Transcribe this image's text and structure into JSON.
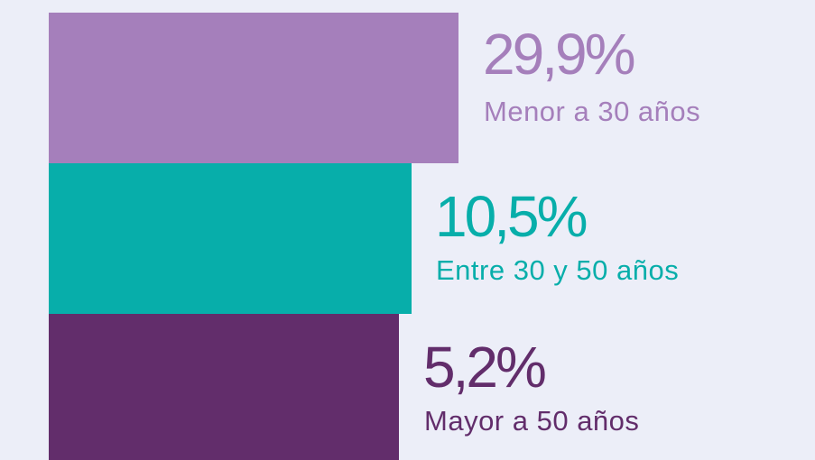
{
  "items": [
    {
      "value": "29,9%",
      "label": "Menor a 30 años",
      "color": "#a57fbb"
    },
    {
      "value": "10,5%",
      "label": "Entre 30 y 50 años",
      "color": "#07aeaa"
    },
    {
      "value": "5,2%",
      "label": "Mayor a 50 años",
      "color": "#622d6b"
    }
  ]
}
